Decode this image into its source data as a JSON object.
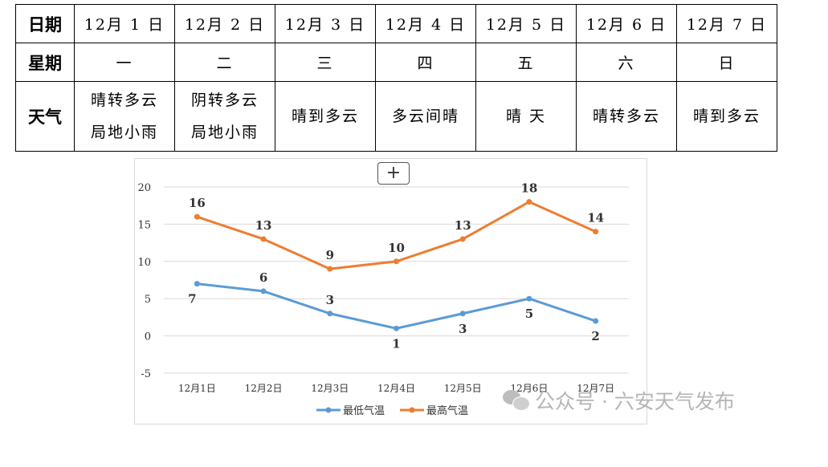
{
  "table": {
    "row_labels": [
      "日期",
      "星期",
      "天气"
    ],
    "dates": [
      "12月 1 日",
      "12月 2 日",
      "12月 3 日",
      "12月 4 日",
      "12月 5 日",
      "12月 6 日",
      "12月 7 日"
    ],
    "weekdays": [
      "一",
      "二",
      "三",
      "四",
      "五",
      "六",
      "日"
    ],
    "weather": [
      [
        "晴转多云",
        "局地小雨"
      ],
      [
        "阴转多云",
        "局地小雨"
      ],
      [
        "晴到多云"
      ],
      [
        "多云间晴"
      ],
      [
        "晴 天"
      ],
      [
        "晴转多云"
      ],
      [
        "晴到多云"
      ]
    ]
  },
  "chart_ui": {
    "plus_label": "+"
  },
  "watermark": {
    "text": "公众号 · 六安天气发布",
    "icon": "wechat-icon"
  },
  "chart_data": {
    "type": "line",
    "categories": [
      "12月1日",
      "12月2日",
      "12月3日",
      "12月4日",
      "12月5日",
      "12月6日",
      "12月7日"
    ],
    "series": [
      {
        "name": "最低气温",
        "values": [
          7,
          6,
          3,
          1,
          3,
          5,
          2
        ],
        "color": "#5b9bd5"
      },
      {
        "name": "最高气温",
        "values": [
          16,
          13,
          9,
          10,
          13,
          18,
          14
        ],
        "color": "#ed7d31"
      }
    ],
    "yticks": [
      -5,
      0,
      5,
      10,
      15,
      20
    ],
    "ylim": [
      -5,
      20
    ],
    "title": "",
    "xlabel": "",
    "ylabel": "",
    "grid": true,
    "legend": "bottom"
  }
}
